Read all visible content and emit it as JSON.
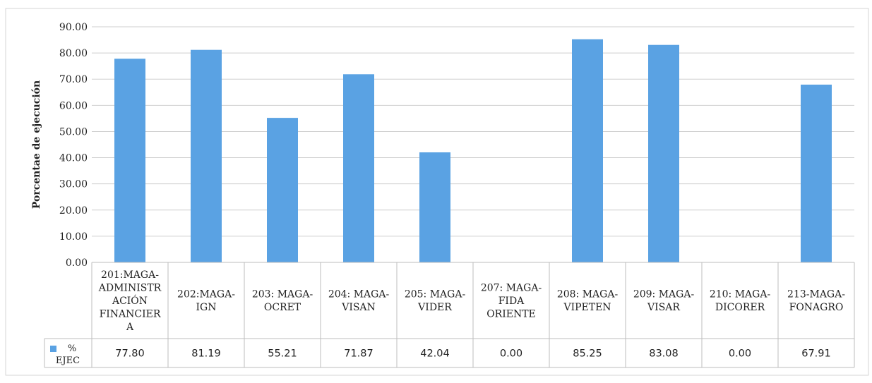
{
  "chart_data": {
    "type": "bar",
    "ylabel": "Porcentae de ejecución",
    "xlabel": "",
    "ylim": [
      0,
      90
    ],
    "yticks": [
      "0.00",
      "10.00",
      "20.00",
      "30.00",
      "40.00",
      "50.00",
      "60.00",
      "70.00",
      "80.00",
      "90.00"
    ],
    "grid": true,
    "legend_position": "table-left",
    "bar_color": "#5aa2e3",
    "categories": [
      [
        "201:MAGA-",
        "ADMINISTR",
        "ACIÓN",
        "FINANCIER",
        "A"
      ],
      [
        "202:MAGA-",
        "IGN"
      ],
      [
        "203: MAGA-",
        "OCRET"
      ],
      [
        "204: MAGA-",
        "VISAN"
      ],
      [
        "205: MAGA-",
        "VIDER"
      ],
      [
        "207: MAGA-",
        "FIDA",
        "ORIENTE"
      ],
      [
        "208: MAGA-",
        "VIPETEN"
      ],
      [
        "209: MAGA-",
        "VISAR"
      ],
      [
        "210: MAGA-",
        "DICORER"
      ],
      [
        "213-MAGA-",
        "FONAGRO"
      ]
    ],
    "series": [
      {
        "name_lines": [
          "%",
          "EJEC"
        ],
        "values": [
          77.8,
          81.19,
          55.21,
          71.87,
          42.04,
          0.0,
          85.25,
          83.08,
          0.0,
          67.91
        ],
        "value_labels": [
          "77.80",
          "81.19",
          "55.21",
          "71.87",
          "42.04",
          "0.00",
          "85.25",
          "83.08",
          "0.00",
          "67.91"
        ]
      }
    ]
  }
}
